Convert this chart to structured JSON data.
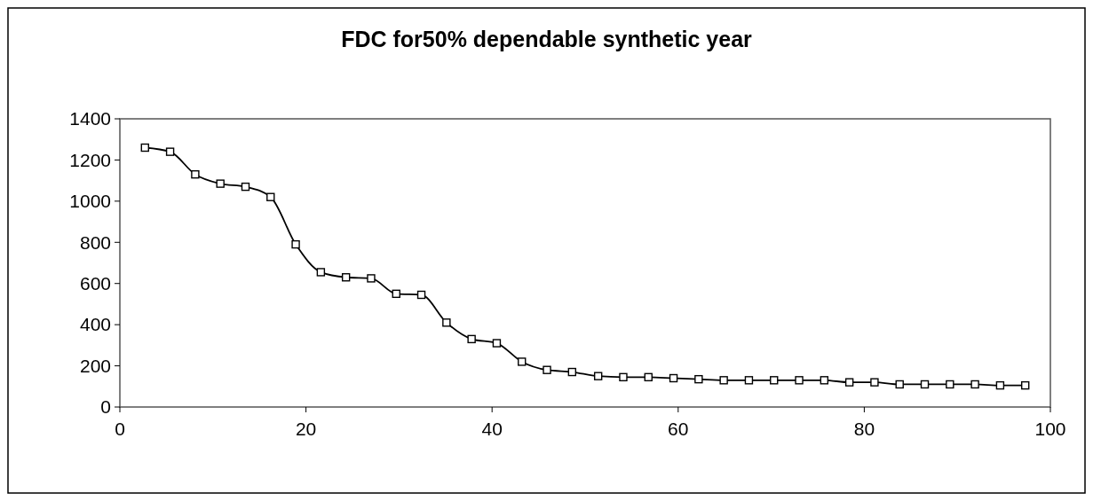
{
  "chart_data": {
    "type": "line",
    "title": "FDC for50% dependable synthetic year",
    "x": [
      2.7,
      5.4,
      8.1,
      10.8,
      13.5,
      16.2,
      18.9,
      21.6,
      24.3,
      27.0,
      29.7,
      32.4,
      35.1,
      37.8,
      40.5,
      43.2,
      45.9,
      48.6,
      51.4,
      54.1,
      56.8,
      59.5,
      62.2,
      64.9,
      67.6,
      70.3,
      73.0,
      75.7,
      78.4,
      81.1,
      83.8,
      86.5,
      89.2,
      91.9,
      94.6,
      97.3
    ],
    "series": [
      {
        "color": "#000000",
        "values": [
          1260,
          1240,
          1130,
          1085,
          1070,
          1020,
          790,
          655,
          630,
          625,
          550,
          545,
          410,
          330,
          310,
          220,
          180,
          170,
          150,
          145,
          145,
          140,
          135,
          130,
          130,
          130,
          130,
          130,
          120,
          120,
          110,
          110,
          110,
          110,
          105,
          105
        ]
      }
    ],
    "xlim": [
      0,
      100
    ],
    "xticks": [
      0,
      20,
      40,
      60,
      80,
      100
    ],
    "ylim": [
      0,
      1400
    ],
    "yticks": [
      0,
      200,
      400,
      600,
      800,
      1000,
      1200,
      1400
    ],
    "grid": false,
    "marker": "square",
    "line_style": "solid"
  }
}
